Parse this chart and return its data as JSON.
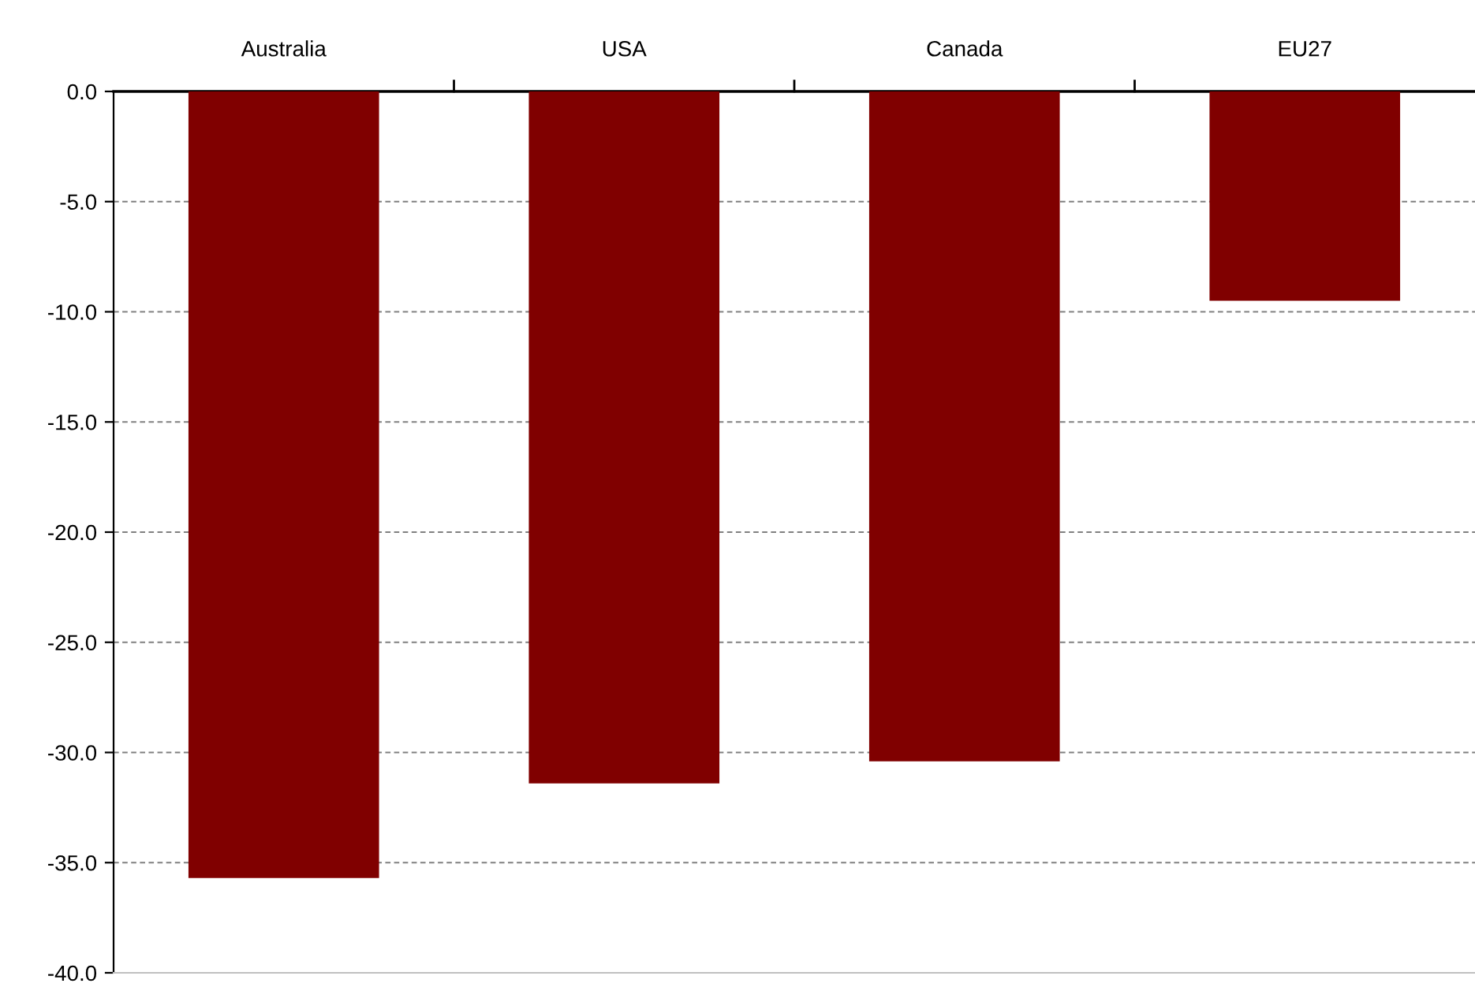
{
  "chart_data": {
    "type": "bar",
    "categories": [
      "Australia",
      "USA",
      "Canada",
      "EU27"
    ],
    "values": [
      -35.7,
      -31.4,
      -30.4,
      -9.5
    ],
    "color": "#800000",
    "ylim": [
      -40,
      0
    ],
    "yticks": [
      {
        "value": -40,
        "label": "-40.0"
      },
      {
        "value": -35,
        "label": "-35.0"
      },
      {
        "value": -30,
        "label": "-30.0"
      },
      {
        "value": -25,
        "label": "-25.0"
      },
      {
        "value": -20,
        "label": "-20.0"
      },
      {
        "value": -15,
        "label": "-15.0"
      },
      {
        "value": -10,
        "label": "-10.0"
      },
      {
        "value": -5,
        "label": "-5.0"
      },
      {
        "value": 0,
        "label": "0.0"
      }
    ],
    "grid": "y"
  }
}
